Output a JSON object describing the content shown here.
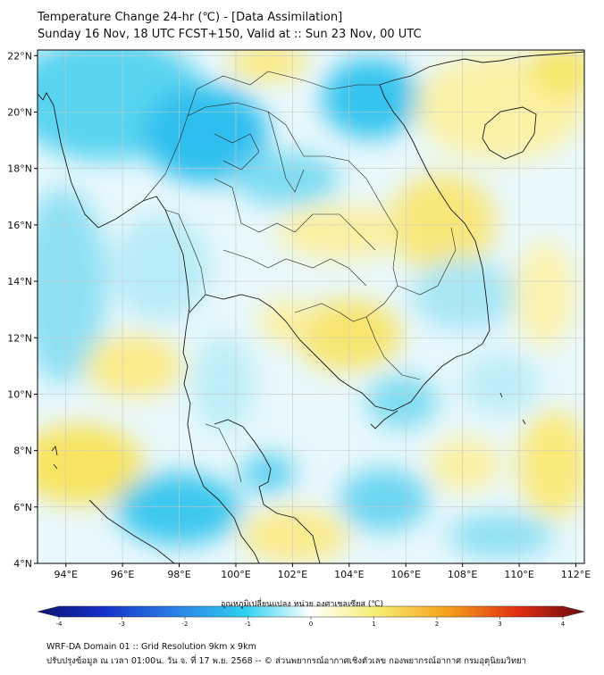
{
  "title": {
    "line1": "Temperature Change 24-hr (℃) - [Data Assimilation]",
    "line2": "Sunday 16 Nov, 18 UTC FCST+150, Valid at :: Sun 23 Nov, 00 UTC"
  },
  "map": {
    "lat_labels": [
      "22°N",
      "20°N",
      "18°N",
      "16°N",
      "14°N",
      "12°N",
      "10°N",
      "8°N",
      "6°N",
      "4°N"
    ],
    "lon_labels": [
      "94°E",
      "96°E",
      "98°E",
      "100°E",
      "102°E",
      "104°E",
      "106°E",
      "108°E",
      "110°E",
      "112°E"
    ],
    "lat_values": [
      22,
      20,
      18,
      16,
      14,
      12,
      10,
      8,
      6,
      4
    ],
    "lon_values": [
      94,
      96,
      98,
      100,
      102,
      104,
      106,
      108,
      110,
      112
    ],
    "extent": {
      "lon_min": 93,
      "lon_max": 112.3,
      "lat_min": 4,
      "lat_max": 22.2
    }
  },
  "colorbar": {
    "label": "อุณหภูมิเปลี่ยนแปลง หน่วย องศาเซลเซียส (℃)",
    "min": -4,
    "max": 4,
    "ticks": [
      "-4",
      "-3",
      "-2",
      "-1",
      "0",
      "1",
      "2",
      "3",
      "4"
    ],
    "tick_values": [
      -4,
      -3,
      -2,
      -1,
      0,
      1,
      2,
      3,
      4
    ]
  },
  "footer": {
    "line1": "WRF-DA Domain 01 :: Grid Resolution 9km x 9km",
    "line2": "ปรับปรุงข้อมูล ณ เวลา 01:00น. วัน จ. ที่ 17 พ.ย. 2568 -- © ส่วนพยากรณ์อากาศเชิงตัวเลข กองพยากรณ์อากาศ กรมอุตุนิยมวิทยา"
  },
  "colors": {
    "frame": "#000000",
    "coast": "#1a1a1a",
    "grid": "#c8c8c8"
  }
}
